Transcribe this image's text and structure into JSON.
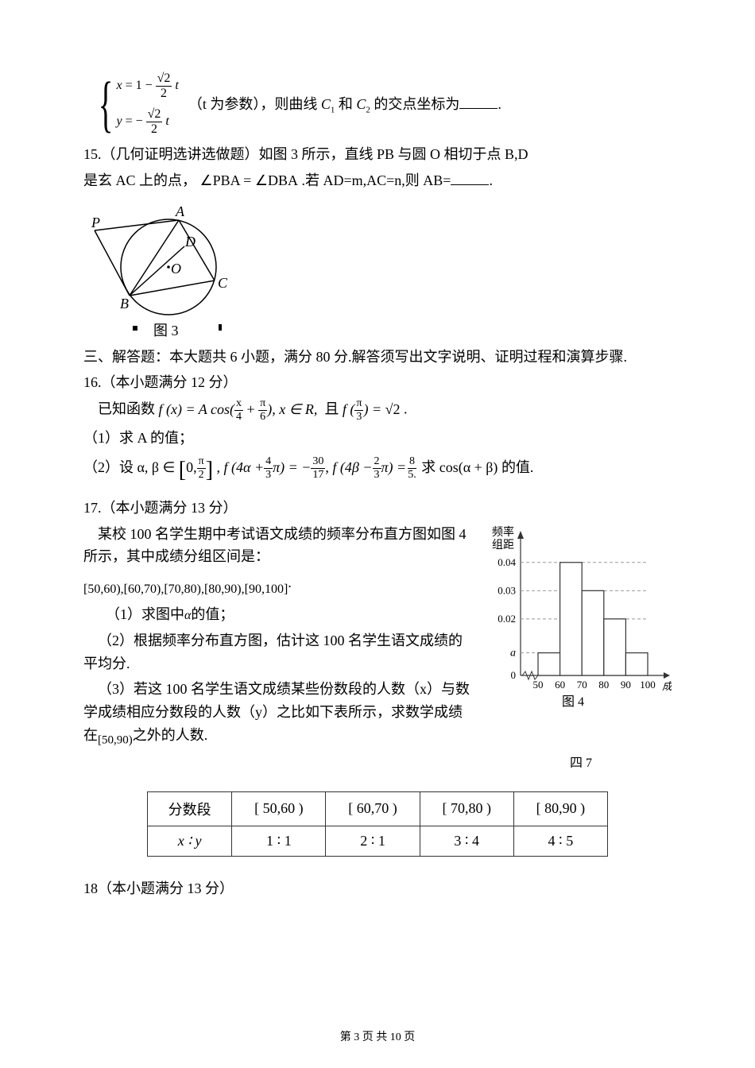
{
  "eq14": {
    "x_lhs": "x",
    "x_rhs_pre": "= 1 −",
    "x_frac_num": "√2",
    "x_frac_den": "2",
    "x_post": "t",
    "y_lhs": "y",
    "y_rhs_pre": "= −",
    "y_frac_num": "√2",
    "y_frac_den": "2",
    "y_post": "t",
    "param_note": "（t 为参数），则曲线",
    "c1": "C",
    "c1s": "1",
    "mid": "和",
    "c2": "C",
    "c2s": "2",
    "tail": "的交点坐标为",
    "period": "."
  },
  "q15": {
    "line1": "15.（几何证明选讲选做题）如图 3 所示，直线 PB 与圆 O 相切于点 B,D",
    "line2a": "是玄 AC 上的点，",
    "angle": "∠PBA = ∠DBA",
    "line2b": ".若 AD=m,AC=n,则 AB=",
    "period": "."
  },
  "fig3": {
    "caption": "图 3",
    "labels": {
      "P": "P",
      "A": "A",
      "D": "D",
      "O": "O",
      "B": "B",
      "C": "C"
    }
  },
  "section3": {
    "title": "三、解答题：本大题共 6 小题，满分 80 分.解答须写出文字说明、证明过程和演算步骤."
  },
  "q16": {
    "head": "16.（本小题满分 12 分）",
    "intro": "已知函数",
    "fx": "f (x) = A cos(",
    "arg1_num": "x",
    "arg1_den": "4",
    "plus": "+",
    "arg2_num": "π",
    "arg2_den": "6",
    "mid": "), x ∈ R,",
    "and": "且",
    "fpi": "f (",
    "pi3_num": "π",
    "pi3_den": "3",
    "eq": ") = ",
    "val": "√2",
    "period": ".",
    "p1": "（1）求 A 的值；",
    "p2a": "（2）设",
    "ab": "α, β ∈",
    "int_l": "0,",
    "int_r_num": "π",
    "int_r_den": "2",
    "comma": ",",
    "f1": "f (4α +",
    "f1b_num": "4",
    "f1b_den": "3",
    "f1c": "π) = −",
    "f1d_num": "30",
    "f1d_den": "17",
    "c2": ",",
    "f2": "f (4β −",
    "f2b_num": "2",
    "f2b_den": "3",
    "f2c": "π) =",
    "f2d_num": "8",
    "f2d_den": "5.",
    "ask": "求",
    "cos": "cos(α + β)",
    "tail": "的值."
  },
  "q17": {
    "head": "17.（本小题满分 13 分）",
    "l1": "某校 100 名学生期中考试语文成绩的频率分布直方图如图 4 所示，其中成绩分组区间是：",
    "intervals": "[50,60),[60,70),[70,80),[80,90),[90,100]",
    "dot": ".",
    "p1": "（1）求图中",
    "alpha": "α",
    "p1b": "的值；",
    "p2": "（2）根据频率分布直方图，估计这 100 名学生语文成绩的平均分.",
    "p3": "（3）若这 100 名学生语文成绩某些份数段的人数（x）与数学成绩相应分数段的人数（y）之比如下表所示，求数学成绩在",
    "range": "[50,90)",
    "p3b": "之外的人数."
  },
  "histogram": {
    "ylabel1": "频率",
    "ylabel2": "组距",
    "xlabel": "成绩",
    "caption": "图 4",
    "yticks": [
      "0.04",
      "0.03",
      "0.02",
      "a",
      "0"
    ],
    "xticks": [
      "50",
      "60",
      "70",
      "80",
      "90",
      "100"
    ],
    "bars": [
      0.008,
      0.04,
      0.03,
      0.02,
      0.008
    ],
    "ymax": 0.045,
    "bar_color": "#ffffff",
    "border_color": "#333333"
  },
  "table": {
    "h1": "分数段",
    "h2": "[ 50,60 )",
    "h3": "[ 60,70 )",
    "h4": "[ 70,80 )",
    "h5": "[ 80,90 )",
    "r1": "x ∶ y",
    "r2": "1 ∶ 1",
    "r3": "2 ∶ 1",
    "r4": "3 ∶ 4",
    "r5": "4 ∶ 5",
    "caption": "四 7"
  },
  "q18": {
    "head": "18（本小题满分 13 分）"
  },
  "footer": "第 3 页 共 10 页"
}
